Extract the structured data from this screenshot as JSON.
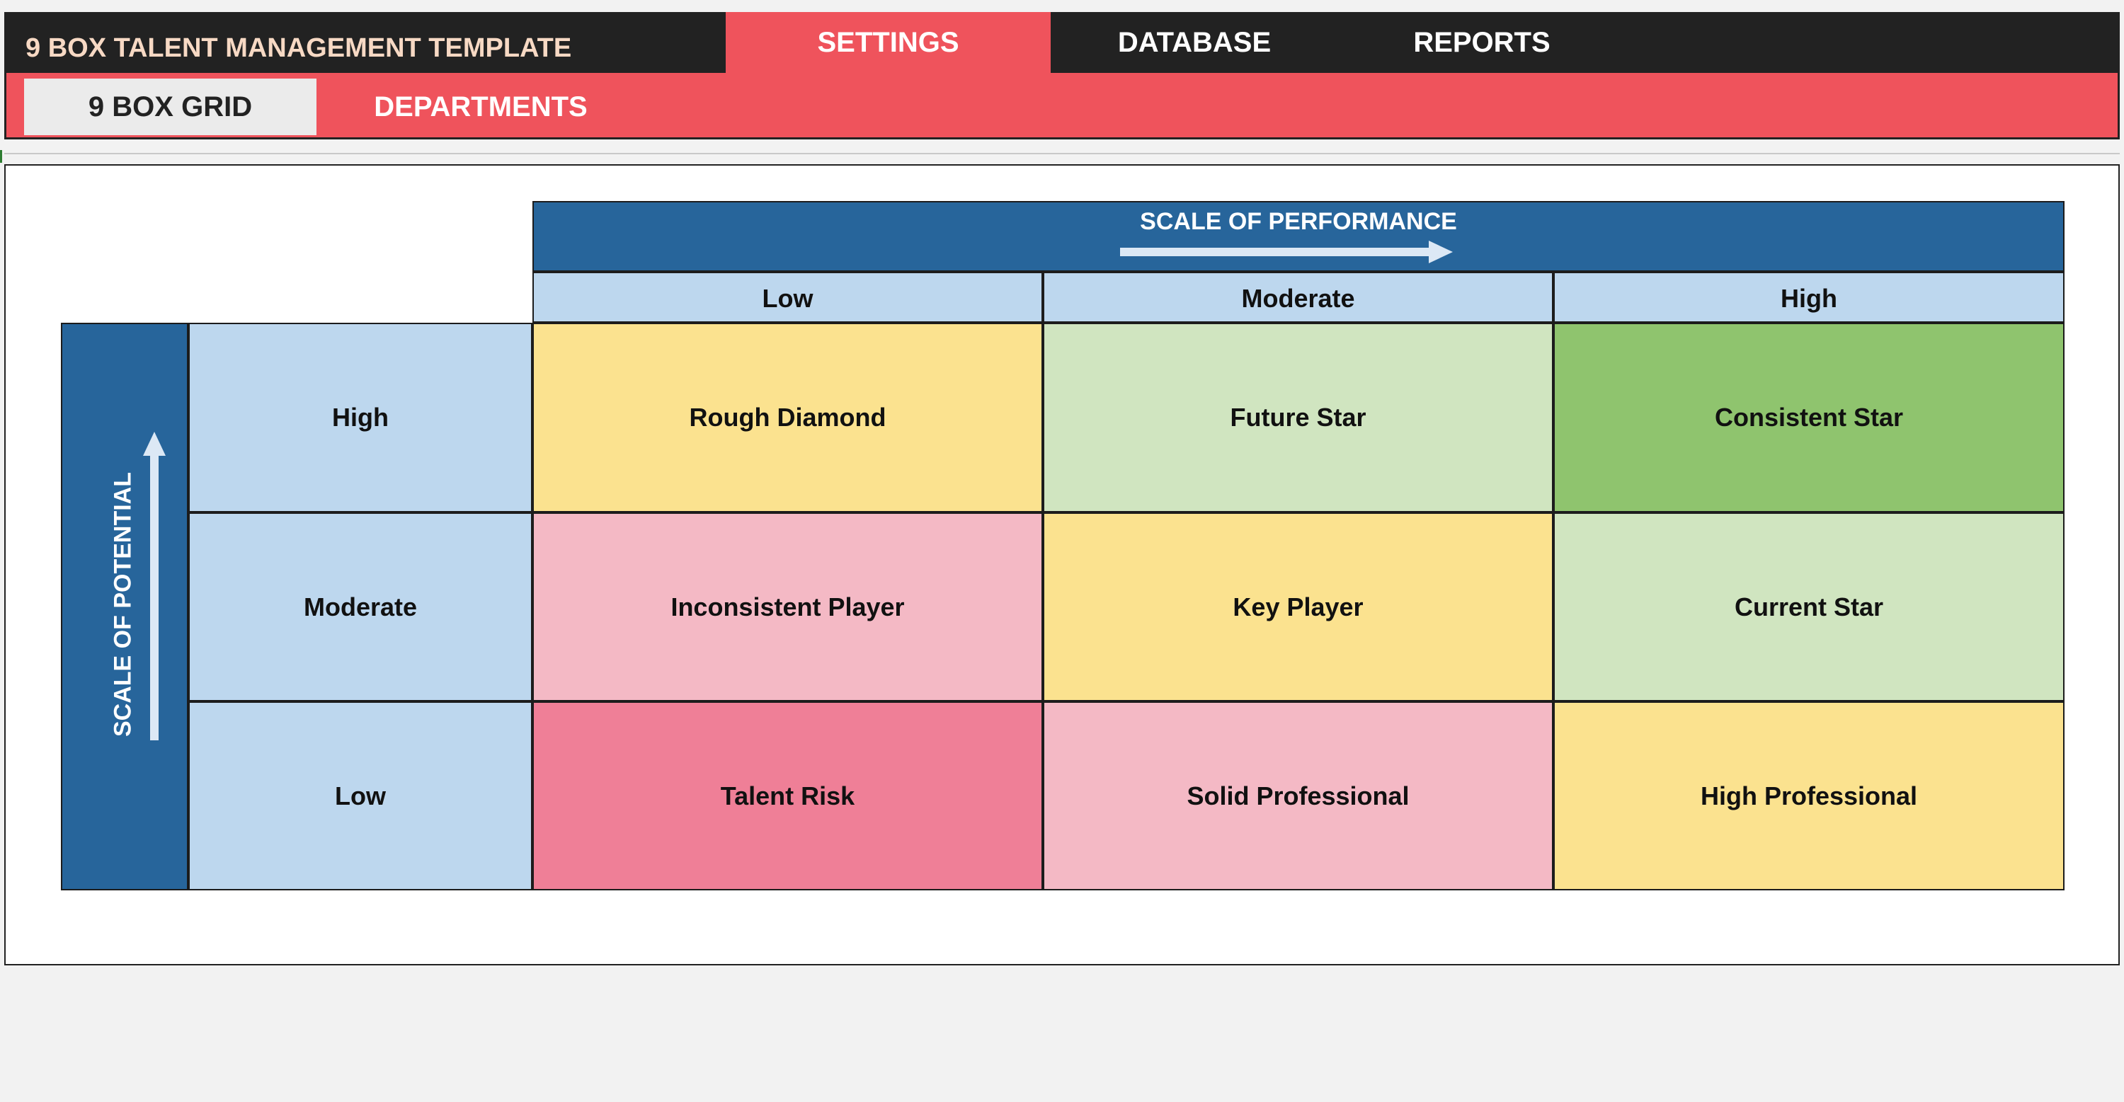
{
  "app": {
    "title": "9 BOX TALENT MANAGEMENT TEMPLATE"
  },
  "main_tabs": [
    {
      "label": "SETTINGS",
      "active": true
    },
    {
      "label": "DATABASE",
      "active": false
    },
    {
      "label": "REPORTS",
      "active": false
    }
  ],
  "sub_tabs": [
    {
      "label": "9 BOX GRID",
      "active": true
    },
    {
      "label": "DEPARTMENTS",
      "active": false
    }
  ],
  "grid": {
    "performance_title": "SCALE OF PERFORMANCE",
    "potential_title": "SCALE OF POTENTIAL",
    "performance_levels": [
      "Low",
      "Moderate",
      "High"
    ],
    "potential_levels": [
      "High",
      "Moderate",
      "Low"
    ],
    "boxes": [
      [
        {
          "label": "Rough Diamond",
          "color": "#fbe28f"
        },
        {
          "label": "Future Star",
          "color": "#d0e5c0"
        },
        {
          "label": "Consistent Star",
          "color": "#8fc46e"
        }
      ],
      [
        {
          "label": "Inconsistent Player",
          "color": "#f4b9c5"
        },
        {
          "label": "Key Player",
          "color": "#fbe28f"
        },
        {
          "label": "Current Star",
          "color": "#d0e5c0"
        }
      ],
      [
        {
          "label": "Talent Risk",
          "color": "#ef7f97"
        },
        {
          "label": "Solid Professional",
          "color": "#f4b9c5"
        },
        {
          "label": "High Professional",
          "color": "#fbe28f"
        }
      ]
    ]
  },
  "colors": {
    "header_dark": "#222222",
    "accent_red": "#ef535c",
    "scale_blue": "#27659b",
    "level_light_blue": "#bdd7ee"
  }
}
